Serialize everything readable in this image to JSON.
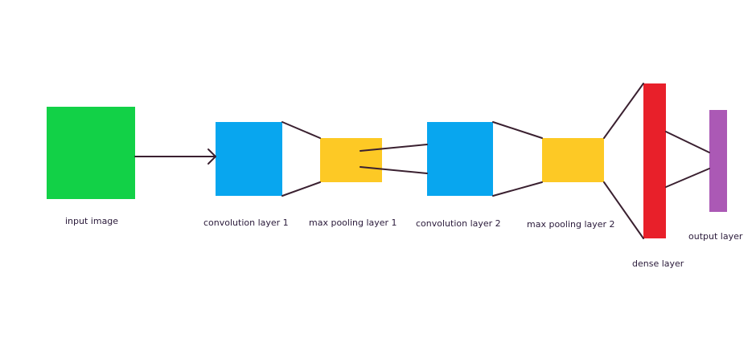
{
  "labels": {
    "input_image": "input image",
    "conv1": "convolution layer 1",
    "pool1": "max pooling layer 1",
    "conv2": "convolution layer 2",
    "pool2": "max pooling layer 2",
    "dense": "dense layer",
    "output": "output layer"
  },
  "colors": {
    "input": "#12d147",
    "convolution": "#08a6ef",
    "pooling": "#fdc925",
    "dense": "#e8202a",
    "output": "#ab59b5",
    "connector": "#3a2030"
  }
}
